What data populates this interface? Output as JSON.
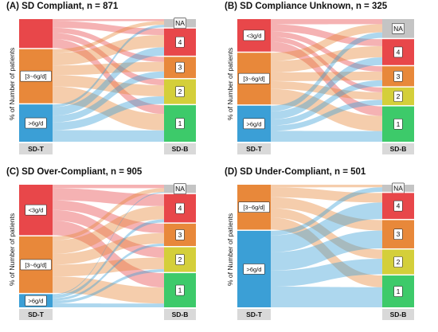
{
  "y_axis_label": "% of Number of patients",
  "left_axis_label": "SD-T",
  "right_axis_label": "SD-B",
  "colors": {
    "lt3": "#e8474a",
    "mid": "#e8883a",
    "gt6": "#3b9fd6",
    "NA": "#c4c4c4",
    "b4": "#e8474a",
    "b3": "#e8883a",
    "b2": "#d4cf3a",
    "b1": "#3dca6a"
  },
  "panels": [
    {
      "title": "(A) SD Compliant, n = 871",
      "left": [
        {
          "key": "lt3",
          "label": "",
          "share": 0.24
        },
        {
          "key": "mid",
          "label": "[3~6g/d]",
          "share": 0.45
        },
        {
          "key": "gt6",
          "label": ">6g/d",
          "share": 0.31
        }
      ],
      "right": [
        {
          "key": "NA",
          "label": "NA",
          "share": 0.07
        },
        {
          "key": "b4",
          "label": "4",
          "share": 0.23
        },
        {
          "key": "b3",
          "label": "3",
          "share": 0.18
        },
        {
          "key": "b2",
          "label": "2",
          "share": 0.21
        },
        {
          "key": "b1",
          "label": "1",
          "share": 0.31
        }
      ]
    },
    {
      "title": "(B) SD Compliance Unknown, n = 325",
      "left": [
        {
          "key": "lt3",
          "label": "<3g/d",
          "share": 0.27
        },
        {
          "key": "mid",
          "label": "[3~6g/d]",
          "share": 0.43
        },
        {
          "key": "gt6",
          "label": ">6g/d",
          "share": 0.3
        }
      ],
      "right": [
        {
          "key": "NA",
          "label": "NA",
          "share": 0.16
        },
        {
          "key": "b4",
          "label": "4",
          "share": 0.22
        },
        {
          "key": "b3",
          "label": "3",
          "share": 0.17
        },
        {
          "key": "b2",
          "label": "2",
          "share": 0.15
        },
        {
          "key": "b1",
          "label": "1",
          "share": 0.3
        }
      ]
    },
    {
      "title": "(C) SD Over-Compliant, n = 905",
      "left": [
        {
          "key": "lt3",
          "label": "<3g/d",
          "share": 0.42
        },
        {
          "key": "mid",
          "label": "[3~6g/d]",
          "share": 0.47
        },
        {
          "key": "gt6",
          "label": ">6g/d",
          "share": 0.11
        }
      ],
      "right": [
        {
          "key": "NA",
          "label": "NA",
          "share": 0.07
        },
        {
          "key": "b4",
          "label": "4",
          "share": 0.24
        },
        {
          "key": "b3",
          "label": "3",
          "share": 0.19
        },
        {
          "key": "b2",
          "label": "2",
          "share": 0.21
        },
        {
          "key": "b1",
          "label": "1",
          "share": 0.29
        }
      ]
    },
    {
      "title": "(D) SD Under-Compliant, n = 501",
      "left": [
        {
          "key": "mid",
          "label": "[3~6g/d]",
          "share": 0.37
        },
        {
          "key": "gt6",
          "label": ">6g/d",
          "share": 0.63
        }
      ],
      "right": [
        {
          "key": "NA",
          "label": "NA",
          "share": 0.06
        },
        {
          "key": "b4",
          "label": "4",
          "share": 0.22
        },
        {
          "key": "b3",
          "label": "3",
          "share": 0.24
        },
        {
          "key": "b2",
          "label": "2",
          "share": 0.21
        },
        {
          "key": "b1",
          "label": "1",
          "share": 0.27
        }
      ]
    }
  ]
}
